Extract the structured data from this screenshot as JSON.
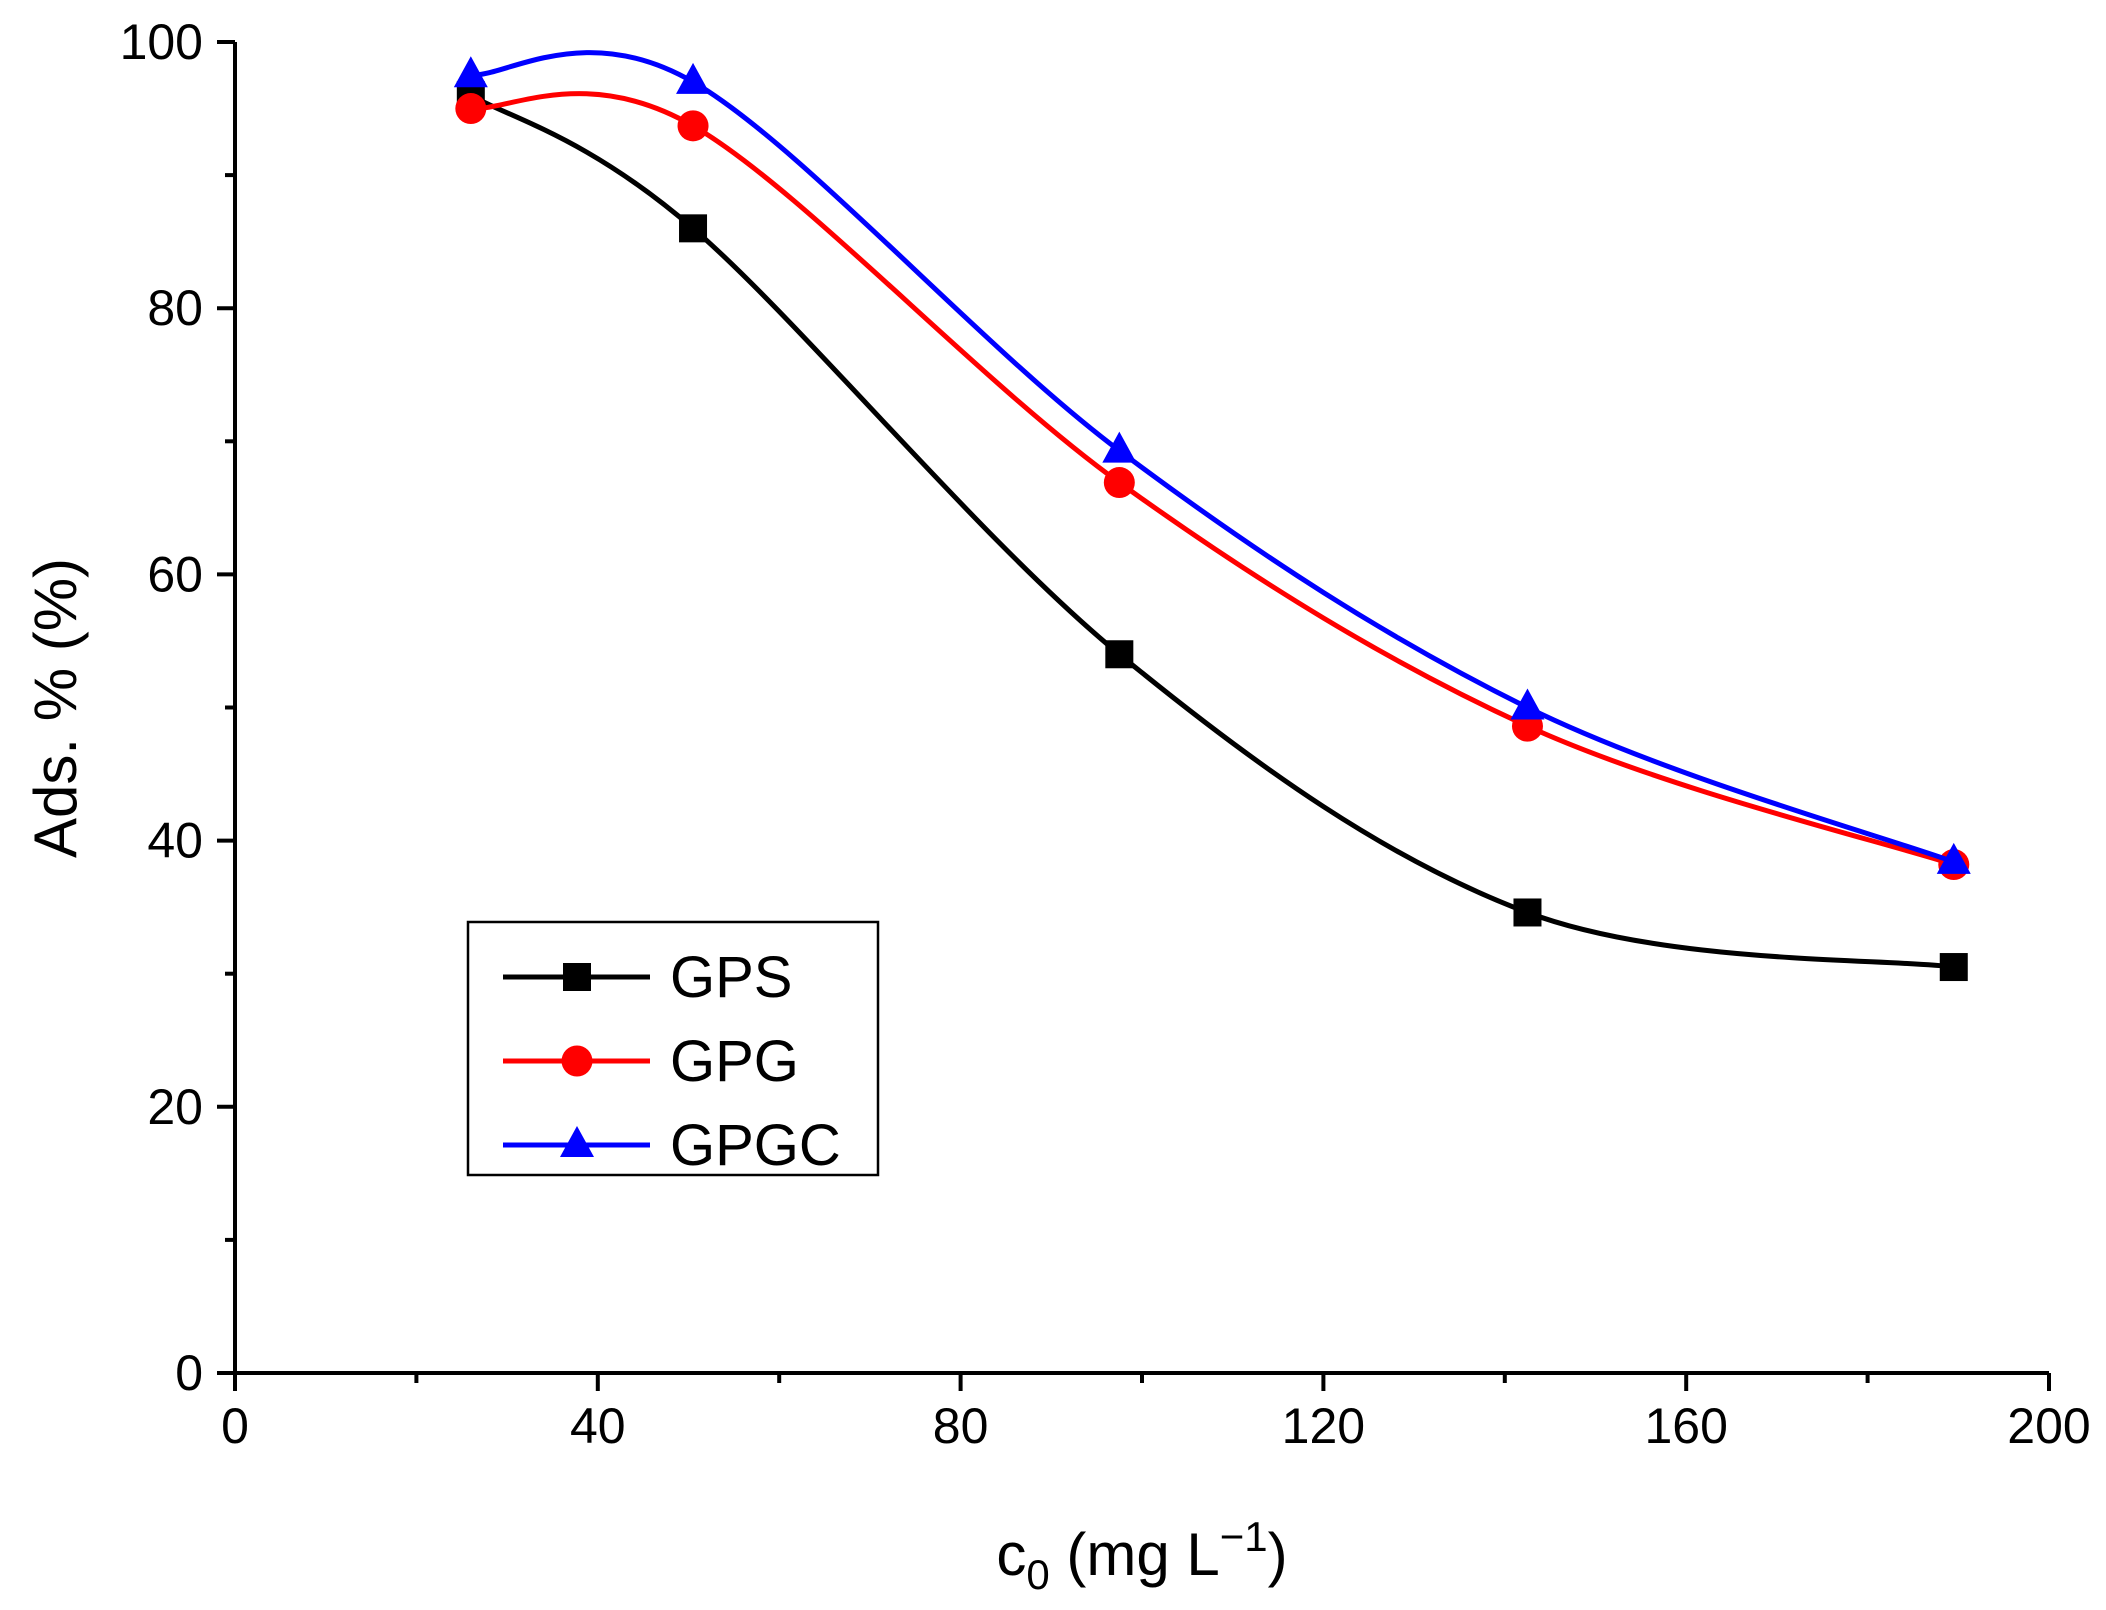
{
  "chart_data": {
    "type": "line",
    "title": "",
    "xlabel": {
      "main": "c",
      "sub": "0",
      "unit": " (mg L",
      "sup": "−1",
      "close": ")"
    },
    "ylabel": "Ads. % (%)",
    "xlim": [
      0,
      200
    ],
    "ylim": [
      0,
      100
    ],
    "x_major_ticks": [
      0,
      40,
      80,
      120,
      160,
      200
    ],
    "x_minor_ticks": [
      20,
      60,
      100,
      140,
      180
    ],
    "y_major_ticks": [
      0,
      20,
      40,
      60,
      80,
      100
    ],
    "y_minor_ticks": [
      10,
      30,
      50,
      70,
      90
    ],
    "x_tick_labels": [
      "0",
      "40",
      "80",
      "120",
      "160",
      "200"
    ],
    "y_tick_labels": [
      "0",
      "20",
      "40",
      "60",
      "80",
      "100"
    ],
    "legend_position": "lower-left",
    "x": [
      26,
      50.5,
      97.5,
      142.5,
      189.5
    ],
    "series": [
      {
        "name": "GPS",
        "color": "#000000",
        "marker": "square",
        "values": [
          96.0,
          86.0,
          54.0,
          34.6,
          30.5
        ]
      },
      {
        "name": "GPG",
        "color": "#ff0000",
        "marker": "circle",
        "values": [
          95.0,
          93.7,
          66.9,
          48.6,
          38.2
        ]
      },
      {
        "name": "GPGC",
        "color": "#0000ff",
        "marker": "triangle",
        "values": [
          97.5,
          97.0,
          69.3,
          50.0,
          38.4
        ]
      }
    ]
  }
}
